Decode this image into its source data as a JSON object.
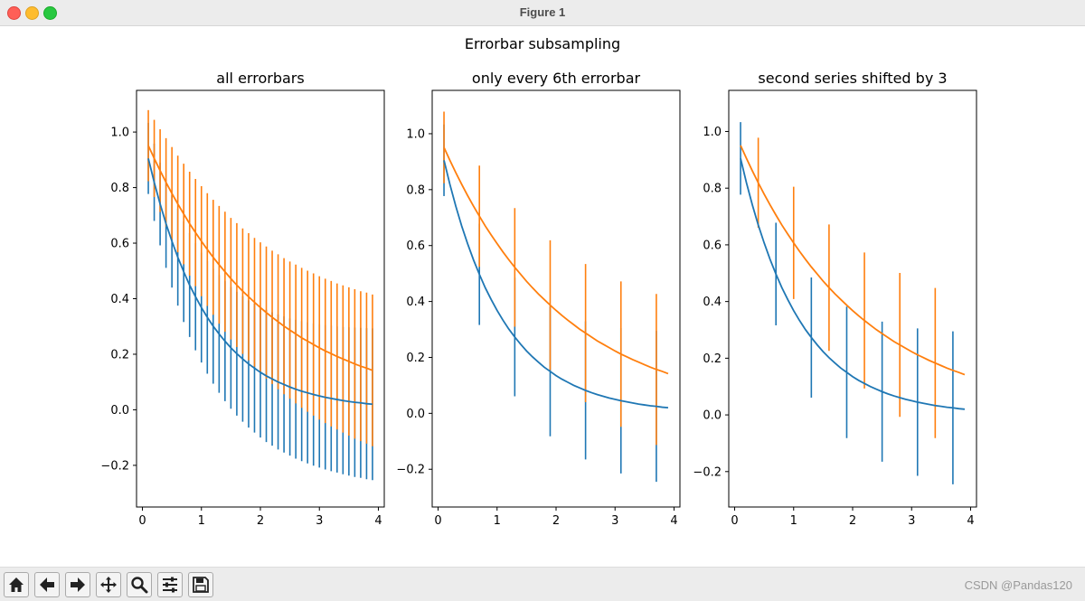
{
  "window": {
    "title": "Figure 1"
  },
  "figure": {
    "suptitle": "Errorbar subsampling"
  },
  "colors": {
    "series1": "#1f77b4",
    "series2": "#ff7f0e",
    "axes": "#000000"
  },
  "toolbar": {
    "buttons": [
      "home-icon",
      "back-arrow-icon",
      "forward-arrow-icon",
      "pan-icon",
      "zoom-icon",
      "configure-subplots-icon",
      "save-icon"
    ]
  },
  "watermark": "CSDN @Pandas120",
  "chart_data": [
    {
      "type": "line",
      "title": "all errorbars",
      "xlabel": "",
      "ylabel": "",
      "xlim": [
        -0.1,
        4.1
      ],
      "ylim": [
        -0.35,
        1.15
      ],
      "xticks": [
        "0",
        "1",
        "2",
        "3",
        "4"
      ],
      "yticks": [
        "−0.2",
        "0.0",
        "0.2",
        "0.4",
        "0.6",
        "0.8",
        "1.0"
      ],
      "x": [
        0.1,
        0.2,
        0.3,
        0.4,
        0.5,
        0.6,
        0.7,
        0.8,
        0.9,
        1.0,
        1.1,
        1.2,
        1.3,
        1.4,
        1.5,
        1.6,
        1.7,
        1.8,
        1.9,
        2.0,
        2.1,
        2.2,
        2.3,
        2.4,
        2.5,
        2.6,
        2.7,
        2.8,
        2.9,
        3.0,
        3.1,
        3.2,
        3.3,
        3.4,
        3.5,
        3.6,
        3.7,
        3.8,
        3.9
      ],
      "series": [
        {
          "y": [
            0.905,
            0.819,
            0.741,
            0.67,
            0.607,
            0.549,
            0.497,
            0.449,
            0.407,
            0.368,
            0.333,
            0.301,
            0.273,
            0.247,
            0.223,
            0.202,
            0.183,
            0.165,
            0.15,
            0.135,
            0.122,
            0.111,
            0.1,
            0.091,
            0.082,
            0.074,
            0.067,
            0.061,
            0.055,
            0.05,
            0.045,
            0.041,
            0.037,
            0.033,
            0.03,
            0.027,
            0.025,
            0.022,
            0.02
          ],
          "yerr": [
            0.128,
            0.139,
            0.149,
            0.159,
            0.167,
            0.174,
            0.181,
            0.187,
            0.193,
            0.198,
            0.203,
            0.207,
            0.212,
            0.216,
            0.219,
            0.223,
            0.226,
            0.229,
            0.232,
            0.235,
            0.238,
            0.24,
            0.243,
            0.245,
            0.247,
            0.25,
            0.252,
            0.254,
            0.256,
            0.258,
            0.26,
            0.262,
            0.263,
            0.265,
            0.267,
            0.269,
            0.27,
            0.272,
            0.273
          ]
        },
        {
          "y": [
            0.951,
            0.905,
            0.861,
            0.819,
            0.779,
            0.741,
            0.705,
            0.67,
            0.638,
            0.607,
            0.577,
            0.549,
            0.522,
            0.497,
            0.472,
            0.449,
            0.427,
            0.407,
            0.387,
            0.368,
            0.35,
            0.333,
            0.317,
            0.301,
            0.287,
            0.273,
            0.259,
            0.247,
            0.235,
            0.223,
            0.212,
            0.202,
            0.192,
            0.183,
            0.174,
            0.165,
            0.157,
            0.15,
            0.142
          ],
          "yerr": [
            0.128,
            0.139,
            0.149,
            0.159,
            0.167,
            0.174,
            0.181,
            0.187,
            0.193,
            0.198,
            0.203,
            0.207,
            0.212,
            0.216,
            0.219,
            0.223,
            0.226,
            0.229,
            0.232,
            0.235,
            0.238,
            0.24,
            0.243,
            0.245,
            0.247,
            0.25,
            0.252,
            0.254,
            0.256,
            0.258,
            0.26,
            0.262,
            0.263,
            0.265,
            0.267,
            0.269,
            0.27,
            0.272,
            0.273
          ]
        }
      ],
      "errorevery": [
        [
          0,
          1
        ],
        [
          0,
          1
        ]
      ]
    },
    {
      "type": "line",
      "title": "only every 6th errorbar",
      "xlabel": "",
      "ylabel": "",
      "xlim": [
        -0.1,
        4.1
      ],
      "ylim": [
        -0.335,
        1.155
      ],
      "xticks": [
        "0",
        "1",
        "2",
        "3",
        "4"
      ],
      "yticks": [
        "−0.2",
        "0.0",
        "0.2",
        "0.4",
        "0.6",
        "0.8",
        "1.0"
      ],
      "errorevery": [
        [
          0,
          6
        ],
        [
          0,
          6
        ]
      ]
    },
    {
      "type": "line",
      "title": "second series shifted by 3",
      "xlabel": "",
      "ylabel": "",
      "xlim": [
        -0.1,
        4.1
      ],
      "ylim": [
        -0.325,
        1.145
      ],
      "xticks": [
        "0",
        "1",
        "2",
        "3",
        "4"
      ],
      "yticks": [
        "−0.2",
        "0.0",
        "0.2",
        "0.4",
        "0.6",
        "0.8",
        "1.0"
      ],
      "errorevery": [
        [
          0,
          6
        ],
        [
          3,
          6
        ]
      ]
    }
  ]
}
